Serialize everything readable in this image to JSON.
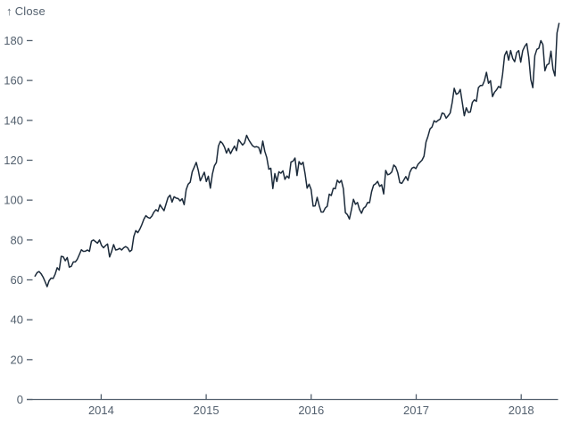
{
  "chart": {
    "y_axis_label": {
      "arrow": "↑",
      "text": "Close"
    }
  },
  "chart_data": {
    "type": "line",
    "title": "",
    "xlabel": "",
    "ylabel": "Close",
    "grid": false,
    "legend": false,
    "x_domain_years": [
      2013.29,
      2018.42
    ],
    "ylim": [
      0,
      190
    ],
    "x_ticks": [
      2014,
      2015,
      2016,
      2017,
      2018
    ],
    "y_ticks": [
      0,
      20,
      40,
      60,
      80,
      100,
      120,
      140,
      160,
      180
    ],
    "colors": {
      "line": "#1b2a3a",
      "axis": "#53606e",
      "background": "#ffffff"
    },
    "series": [
      {
        "name": "Close",
        "sampling": "weekly",
        "x_start_year": 2013.37,
        "x_end_year": 2018.36,
        "values": [
          61.9,
          63.6,
          64.2,
          63.1,
          61.4,
          59.1,
          56.6,
          59.6,
          60.9,
          60.7,
          62.9,
          66.1,
          64.9,
          71.8,
          71.6,
          69.6,
          71.2,
          66.4,
          66.8,
          69.0,
          69.0,
          70.4,
          72.7,
          75.1,
          74.3,
          74.4,
          75.0,
          74.3,
          79.4,
          80.0,
          79.2,
          78.4,
          80.0,
          77.3,
          76.1,
          77.2,
          78.0,
          71.5,
          74.2,
          77.7,
          75.0,
          75.2,
          75.8,
          75.0,
          76.1,
          76.7,
          76.0,
          74.2,
          75.0,
          81.7,
          84.7,
          83.7,
          85.4,
          87.7,
          90.4,
          92.2,
          91.3,
          90.9,
          92.0,
          94.0,
          95.2,
          94.4,
          97.7,
          96.1,
          94.7,
          98.0,
          101.3,
          102.5,
          99.0,
          101.7,
          101.0,
          100.8,
          99.6,
          100.7,
          97.7,
          105.2,
          108.0,
          109.0,
          114.2,
          116.5,
          118.9,
          115.0,
          109.7,
          111.8,
          114.0,
          109.3,
          112.0,
          106.0,
          113.0,
          117.2,
          118.9,
          127.1,
          129.5,
          128.5,
          126.6,
          123.6,
          125.9,
          123.3,
          125.3,
          127.1,
          124.8,
          130.3,
          129.0,
          127.6,
          128.8,
          132.5,
          130.3,
          128.7,
          127.2,
          126.6,
          126.8,
          126.4,
          123.3,
          129.6,
          124.5,
          121.3,
          115.5,
          116.0,
          105.8,
          113.3,
          109.3,
          114.2,
          113.5,
          114.7,
          110.4,
          112.1,
          111.0,
          119.1,
          119.5,
          121.1,
          112.3,
          119.3,
          117.8,
          119.0,
          113.2,
          106.0,
          108.0,
          105.3,
          97.0,
          97.1,
          101.4,
          97.3,
          94.0,
          94.0,
          96.0,
          96.9,
          103.0,
          102.3,
          105.9,
          105.7,
          110.0,
          108.7,
          109.9,
          105.7,
          93.7,
          92.7,
          90.5,
          95.2,
          100.4,
          97.9,
          98.8,
          95.3,
          93.4,
          95.9,
          96.7,
          98.8,
          98.7,
          104.2,
          107.5,
          108.2,
          109.4,
          106.9,
          107.7,
          103.1,
          114.9,
          112.7,
          113.1,
          114.1,
          117.6,
          116.6,
          113.7,
          108.8,
          108.4,
          110.1,
          111.8,
          109.9,
          114.0,
          116.0,
          116.5,
          115.8,
          117.9,
          119.0,
          120.0,
          122.0,
          129.1,
          132.1,
          135.7,
          136.7,
          139.8,
          139.1,
          140.0,
          140.6,
          143.7,
          143.3,
          141.1,
          142.3,
          143.7,
          149.0,
          156.1,
          153.1,
          153.6,
          155.5,
          149.0,
          142.3,
          146.3,
          144.0,
          144.2,
          149.0,
          150.3,
          149.5,
          156.4,
          157.5,
          157.5,
          159.9,
          164.1,
          158.6,
          159.9,
          151.9,
          154.1,
          155.3,
          157.0,
          156.3,
          163.1,
          172.5,
          174.7,
          170.2,
          175.0,
          171.1,
          169.4,
          174.0,
          175.0,
          169.2,
          175.0,
          177.1,
          178.5,
          171.5,
          160.5,
          156.4,
          172.4,
          175.6,
          176.2,
          180.0,
          178.0,
          164.9,
          167.8,
          168.4,
          174.7,
          165.7,
          162.3,
          183.8,
          188.6
        ]
      }
    ]
  }
}
